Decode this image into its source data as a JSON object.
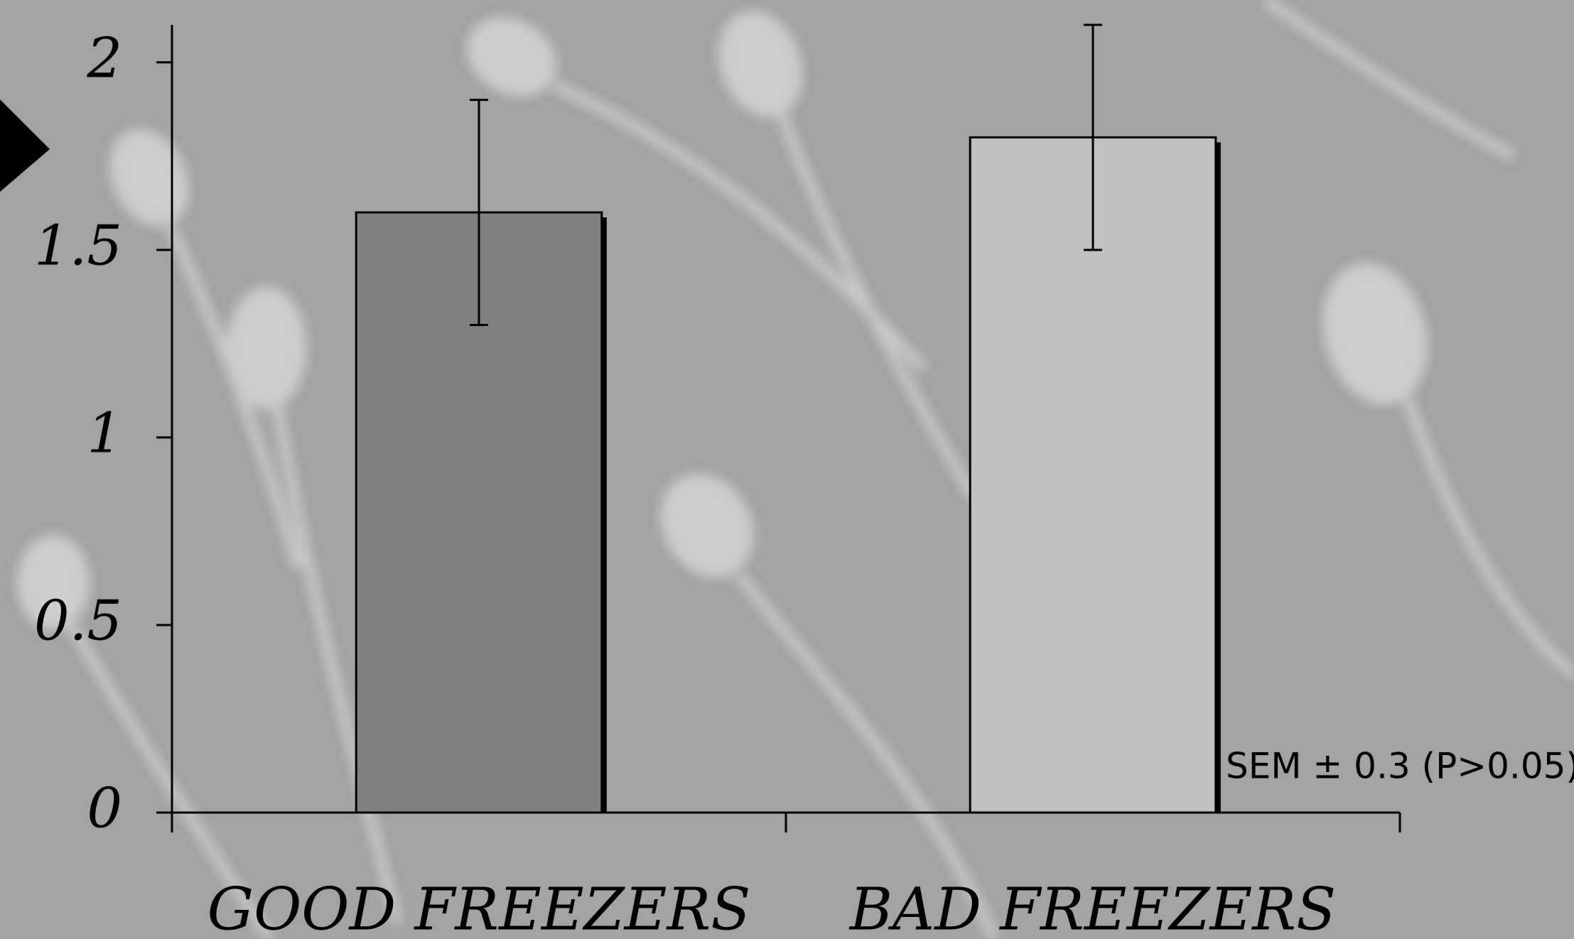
{
  "chart_data": {
    "type": "bar",
    "categories": [
      "GOOD FREEZERS",
      "BAD FREEZERS"
    ],
    "values": [
      1.6,
      1.8
    ],
    "errors": [
      0.3,
      0.3
    ],
    "colors": [
      "#808080",
      "#c0c0c0"
    ],
    "ylim": [
      0,
      2.1
    ],
    "yticks": [
      0,
      0.5,
      1,
      1.5,
      2
    ],
    "annotation": "SEM ± 0.3 (P>0.05)"
  }
}
